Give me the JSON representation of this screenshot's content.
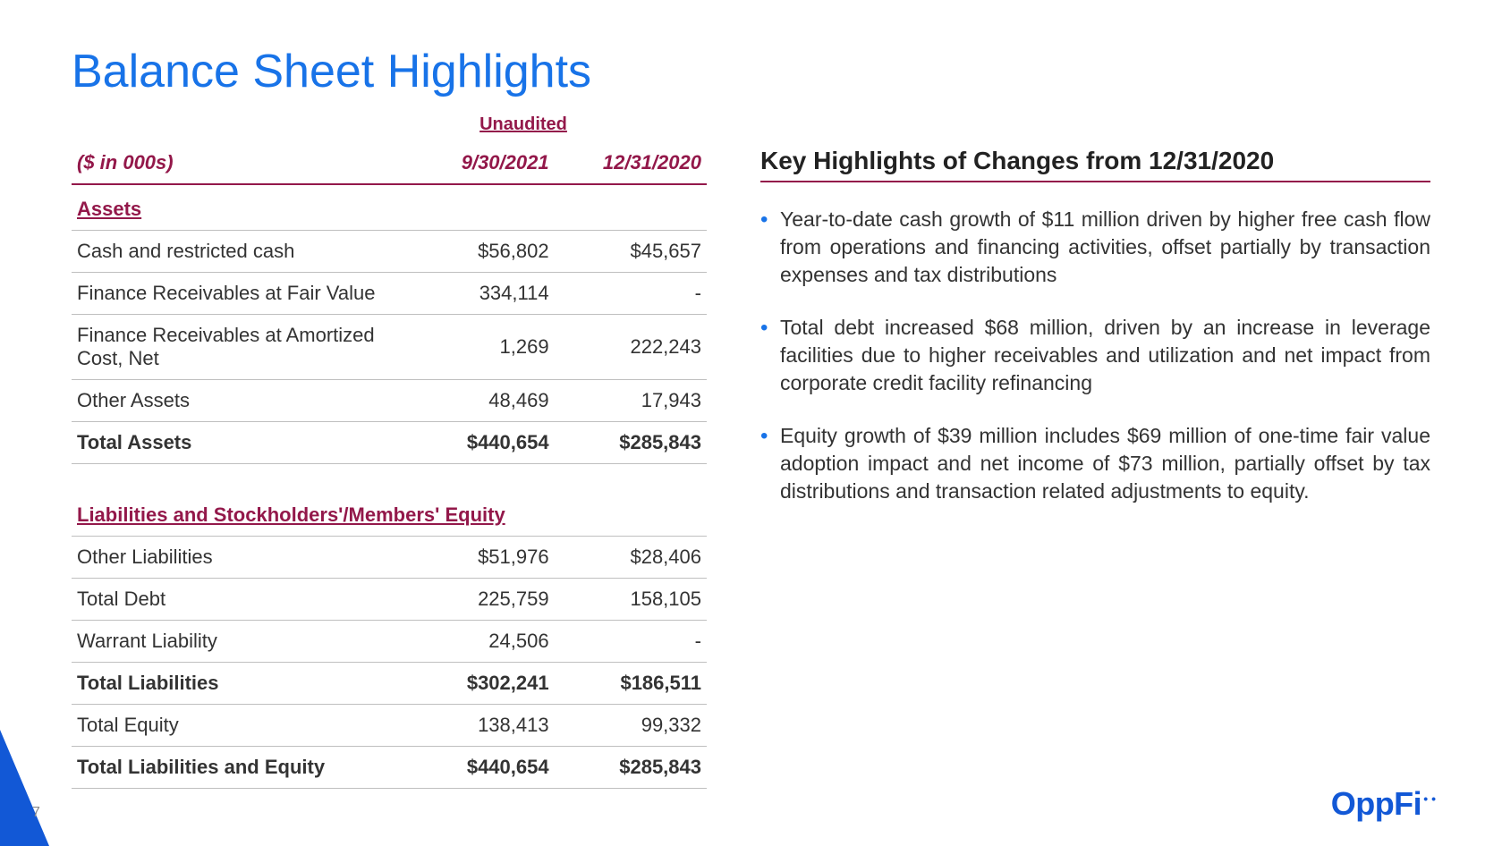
{
  "title": "Balance Sheet Highlights",
  "unaudited_label": "Unaudited",
  "table": {
    "unit_label": "($ in 000s)",
    "col1": "9/30/2021",
    "col2": "12/31/2020",
    "section_assets": "Assets",
    "rows_assets": [
      {
        "label": "Cash and restricted cash",
        "v1": "$56,802",
        "v2": "$45,657"
      },
      {
        "label": "Finance Receivables at Fair Value",
        "v1": "334,114",
        "v2": "-"
      },
      {
        "label": "Finance Receivables at Amortized Cost, Net",
        "v1": "1,269",
        "v2": "222,243"
      },
      {
        "label": "Other Assets",
        "v1": "48,469",
        "v2": "17,943"
      }
    ],
    "total_assets": {
      "label": "Total Assets",
      "v1": "$440,654",
      "v2": "$285,843"
    },
    "section_liab": "Liabilities and Stockholders'/Members' Equity",
    "rows_liab": [
      {
        "label": "Other Liabilities",
        "v1": "$51,976",
        "v2": "$28,406"
      },
      {
        "label": "Total Debt",
        "v1": "225,759",
        "v2": "158,105"
      },
      {
        "label": "Warrant Liability",
        "v1": "24,506",
        "v2": "-"
      }
    ],
    "total_liab": {
      "label": "Total Liabilities",
      "v1": "$302,241",
      "v2": "$186,511"
    },
    "total_equity": {
      "label": "Total Equity",
      "v1": "138,413",
      "v2": "99,332"
    },
    "total_le": {
      "label": "Total Liabilities and Equity",
      "v1": "$440,654",
      "v2": "$285,843"
    }
  },
  "highlights": {
    "title": "Key Highlights of Changes from 12/31/2020",
    "items": [
      "Year-to-date cash growth of $11 million driven by higher free cash flow from operations and financing activities, offset partially by transaction expenses and tax distributions",
      "Total debt increased $68 million, driven by an increase in leverage facilities due to higher receivables and utilization and net impact from corporate credit facility refinancing",
      "Equity growth of $39 million includes $69 million of one-time fair value adoption impact and net income of $73 million, partially offset by tax distributions and transaction related adjustments to equity."
    ]
  },
  "page_number": "7",
  "logo_text": "OppFi",
  "colors": {
    "title": "#1873e8",
    "accent": "#93184a",
    "brand": "#1258d6",
    "text": "#333333",
    "border": "#bfbfbf",
    "background": "#ffffff"
  },
  "typography": {
    "title_fontsize": 52,
    "table_fontsize": 22,
    "highlights_title_fontsize": 28,
    "highlights_body_fontsize": 23,
    "logo_fontsize": 36,
    "font_family": "Arial"
  }
}
